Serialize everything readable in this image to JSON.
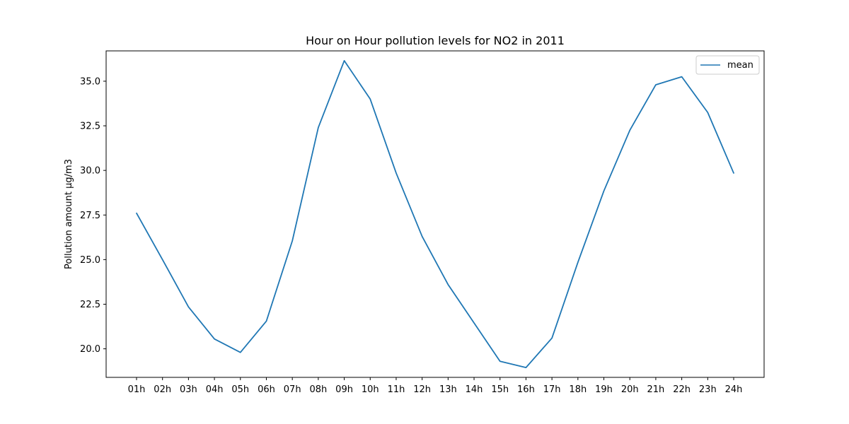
{
  "chart_data": {
    "type": "line",
    "title": "Hour on Hour pollution levels for NO2 in 2011",
    "xlabel": "",
    "ylabel": "Pollution amount µg/m3",
    "categories": [
      "01h",
      "02h",
      "03h",
      "04h",
      "05h",
      "06h",
      "07h",
      "08h",
      "09h",
      "10h",
      "11h",
      "12h",
      "13h",
      "14h",
      "15h",
      "16h",
      "17h",
      "18h",
      "19h",
      "20h",
      "21h",
      "22h",
      "23h",
      "24h"
    ],
    "series": [
      {
        "name": "mean",
        "color": "#1f77b4",
        "values": [
          27.6,
          25.0,
          22.35,
          20.55,
          19.8,
          21.55,
          26.05,
          32.4,
          36.15,
          34.0,
          29.85,
          26.3,
          23.6,
          21.45,
          19.3,
          18.95,
          20.6,
          24.85,
          28.85,
          32.25,
          34.8,
          35.25,
          33.25,
          29.85
        ]
      }
    ],
    "ylim": [
      18.4,
      36.7
    ],
    "yticks": [
      20.0,
      22.5,
      25.0,
      27.5,
      30.0,
      32.5,
      35.0
    ],
    "ytick_labels": [
      "20.0",
      "22.5",
      "25.0",
      "27.5",
      "30.0",
      "32.5",
      "35.0"
    ],
    "grid": false,
    "legend_position": "upper right"
  }
}
